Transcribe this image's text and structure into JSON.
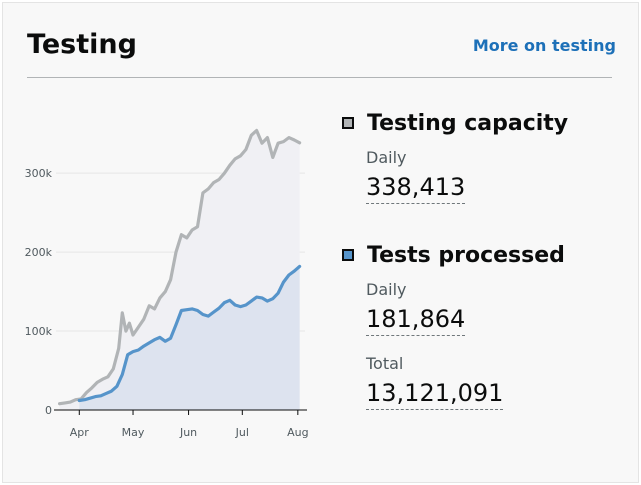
{
  "card": {
    "title": "Testing",
    "more_link": "More on testing"
  },
  "metrics": [
    {
      "heading": "Testing capacity",
      "color": "#b1b4b6",
      "stats": [
        {
          "label": "Daily",
          "value": "338,413"
        }
      ]
    },
    {
      "heading": "Tests processed",
      "color": "#5694ca",
      "stats": [
        {
          "label": "Daily",
          "value": "181,864"
        },
        {
          "label": "Total",
          "value": "13,121,091"
        }
      ]
    }
  ],
  "chart_data": {
    "type": "area",
    "title": "",
    "xlabel": "",
    "ylabel": "",
    "x_ticks": [
      "Apr",
      "May",
      "Jun",
      "Jul",
      "Aug"
    ],
    "y_ticks": [
      "0",
      "100k",
      "200k",
      "300k"
    ],
    "ylim": [
      0,
      360000
    ],
    "grid": true,
    "series": [
      {
        "name": "Testing capacity",
        "color": "#b1b4b6",
        "fill": "#f0f0f4",
        "points": [
          [
            "2020-03-21",
            8000
          ],
          [
            "2020-03-24",
            9000
          ],
          [
            "2020-03-27",
            10000
          ],
          [
            "2020-03-30",
            13000
          ],
          [
            "2020-04-02",
            14000
          ],
          [
            "2020-04-05",
            22000
          ],
          [
            "2020-04-08",
            28000
          ],
          [
            "2020-04-11",
            35000
          ],
          [
            "2020-04-14",
            39000
          ],
          [
            "2020-04-17",
            42000
          ],
          [
            "2020-04-20",
            52000
          ],
          [
            "2020-04-23",
            78000
          ],
          [
            "2020-04-25",
            123000
          ],
          [
            "2020-04-27",
            100000
          ],
          [
            "2020-04-29",
            110000
          ],
          [
            "2020-05-01",
            95000
          ],
          [
            "2020-05-04",
            105000
          ],
          [
            "2020-05-07",
            115000
          ],
          [
            "2020-05-10",
            132000
          ],
          [
            "2020-05-13",
            128000
          ],
          [
            "2020-05-16",
            142000
          ],
          [
            "2020-05-19",
            150000
          ],
          [
            "2020-05-22",
            165000
          ],
          [
            "2020-05-25",
            200000
          ],
          [
            "2020-05-28",
            222000
          ],
          [
            "2020-05-31",
            218000
          ],
          [
            "2020-06-03",
            228000
          ],
          [
            "2020-06-06",
            232000
          ],
          [
            "2020-06-09",
            275000
          ],
          [
            "2020-06-12",
            280000
          ],
          [
            "2020-06-15",
            288000
          ],
          [
            "2020-06-18",
            292000
          ],
          [
            "2020-06-21",
            300000
          ],
          [
            "2020-06-24",
            310000
          ],
          [
            "2020-06-27",
            318000
          ],
          [
            "2020-06-30",
            322000
          ],
          [
            "2020-07-03",
            330000
          ],
          [
            "2020-07-06",
            348000
          ],
          [
            "2020-07-09",
            354000
          ],
          [
            "2020-07-12",
            338000
          ],
          [
            "2020-07-15",
            345000
          ],
          [
            "2020-07-18",
            320000
          ],
          [
            "2020-07-21",
            338000
          ],
          [
            "2020-07-24",
            340000
          ],
          [
            "2020-07-27",
            345000
          ],
          [
            "2020-07-30",
            342000
          ],
          [
            "2020-08-02",
            338413
          ]
        ]
      },
      {
        "name": "Tests processed",
        "color": "#5694ca",
        "fill": "#dde3ef",
        "points": [
          [
            "2020-04-01",
            12000
          ],
          [
            "2020-04-04",
            13000
          ],
          [
            "2020-04-07",
            15000
          ],
          [
            "2020-04-10",
            17000
          ],
          [
            "2020-04-13",
            18000
          ],
          [
            "2020-04-16",
            21000
          ],
          [
            "2020-04-19",
            24000
          ],
          [
            "2020-04-22",
            30000
          ],
          [
            "2020-04-25",
            45000
          ],
          [
            "2020-04-28",
            70000
          ],
          [
            "2020-05-01",
            74000
          ],
          [
            "2020-05-04",
            76000
          ],
          [
            "2020-05-07",
            81000
          ],
          [
            "2020-05-10",
            85000
          ],
          [
            "2020-05-13",
            89000
          ],
          [
            "2020-05-16",
            92000
          ],
          [
            "2020-05-19",
            87000
          ],
          [
            "2020-05-22",
            91000
          ],
          [
            "2020-05-25",
            108000
          ],
          [
            "2020-05-28",
            126000
          ],
          [
            "2020-05-31",
            127000
          ],
          [
            "2020-06-03",
            128000
          ],
          [
            "2020-06-06",
            126000
          ],
          [
            "2020-06-09",
            121000
          ],
          [
            "2020-06-12",
            119000
          ],
          [
            "2020-06-15",
            124000
          ],
          [
            "2020-06-18",
            129000
          ],
          [
            "2020-06-21",
            136000
          ],
          [
            "2020-06-24",
            139000
          ],
          [
            "2020-06-27",
            133000
          ],
          [
            "2020-06-30",
            131000
          ],
          [
            "2020-07-03",
            133000
          ],
          [
            "2020-07-06",
            138000
          ],
          [
            "2020-07-09",
            143000
          ],
          [
            "2020-07-12",
            142000
          ],
          [
            "2020-07-15",
            138000
          ],
          [
            "2020-07-18",
            141000
          ],
          [
            "2020-07-21",
            148000
          ],
          [
            "2020-07-24",
            162000
          ],
          [
            "2020-07-27",
            171000
          ],
          [
            "2020-07-30",
            176000
          ],
          [
            "2020-08-02",
            181864
          ]
        ]
      }
    ]
  }
}
